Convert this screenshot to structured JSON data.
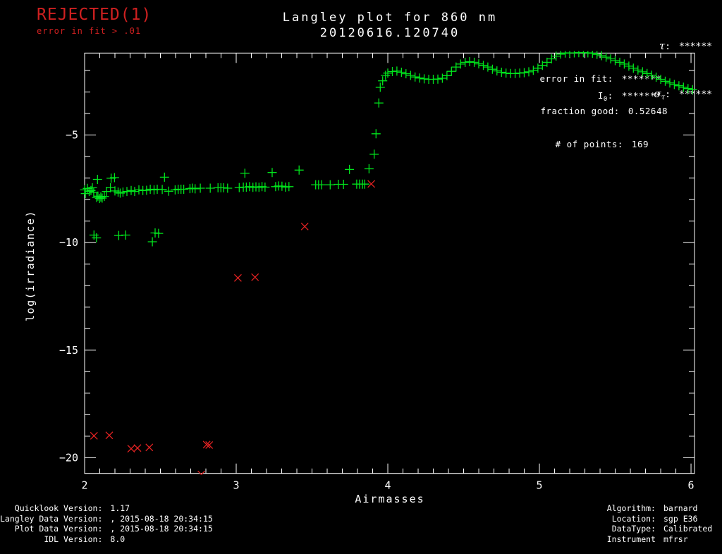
{
  "header": {
    "rejected": "REJECTED(1)",
    "rejected_reason": "error in fit > .01",
    "title_line1": "Langley plot for 860 nm",
    "title_line2": "20120616.120740",
    "tau": {
      "symbol": "τ",
      "colon": ":",
      "value": "******"
    },
    "sigma": {
      "symbol": "σ",
      "sub": "τ",
      "colon": ":",
      "value": "******"
    }
  },
  "annotations": {
    "error_in_fit": {
      "label": "error in fit:",
      "value": "*******"
    },
    "i0": {
      "label_main": "I",
      "label_sub": "0",
      "colon": ":",
      "value": "*******"
    },
    "fraction_good": {
      "label": "fraction good:",
      "value": "0.52648"
    },
    "num_points": {
      "label": "# of points:",
      "value": "169"
    }
  },
  "footer_left": {
    "rows": [
      {
        "label": "Quicklook Version:",
        "value": "1.17"
      },
      {
        "label": "Langley Data Version:",
        "value": ", 2015-08-18 20:34:15"
      },
      {
        "label": "Plot Data Version:",
        "value": ", 2015-08-18 20:34:15"
      },
      {
        "label": "IDL Version:",
        "value": "8.0"
      }
    ]
  },
  "footer_right": {
    "rows": [
      {
        "label": "Algorithm:",
        "value": "barnard"
      },
      {
        "label": "Location:",
        "value": "sgp E36"
      },
      {
        "label": "DataType:",
        "value": "Calibrated"
      },
      {
        "label": "Instrument",
        "value": "mfrsr"
      }
    ]
  },
  "colors": {
    "background": "#000000",
    "axis": "#ffffff",
    "accepted_green": "#00e51c",
    "rejected_red": "#e32222",
    "text_red": "#cf2020",
    "text_white": "#ffffff"
  },
  "chart_data": {
    "type": "scatter",
    "title": "Langley plot for 860 nm 20120616.120740",
    "xlabel": "Airmasses",
    "ylabel": "log(irradiance)",
    "xlim": [
      2.0,
      6.023
    ],
    "ylim": [
      -20.73,
      -1.19
    ],
    "x_major_ticks": [
      2,
      3,
      4,
      5,
      6
    ],
    "x_tick_labels": [
      "2",
      "3",
      "4",
      "5",
      "6"
    ],
    "x_minor_step": 0.1,
    "y_major_ticks": [
      -5,
      -10,
      -15,
      -20
    ],
    "y_tick_labels": [
      "−5",
      "−10",
      "−15",
      "−20"
    ],
    "y_minor_step": 1,
    "grid": false,
    "series": [
      {
        "name": "accepted",
        "marker": "plus",
        "color": "#00e51c",
        "points": [
          [
            2.0,
            -7.55
          ],
          [
            2.005,
            -7.72
          ],
          [
            2.018,
            -7.48
          ],
          [
            2.03,
            -7.62
          ],
          [
            2.042,
            -7.58
          ],
          [
            2.051,
            -7.45
          ],
          [
            2.06,
            -7.66
          ],
          [
            2.079,
            -7.9
          ],
          [
            2.088,
            -7.84
          ],
          [
            2.098,
            -7.95
          ],
          [
            2.107,
            -7.88
          ],
          [
            2.116,
            -7.93
          ],
          [
            2.13,
            -7.85
          ],
          [
            2.144,
            -7.62
          ],
          [
            2.17,
            -7.45
          ],
          [
            2.2,
            -7.6
          ],
          [
            2.221,
            -7.65
          ],
          [
            2.235,
            -7.7
          ],
          [
            2.253,
            -7.65
          ],
          [
            2.279,
            -7.62
          ],
          [
            2.307,
            -7.58
          ],
          [
            2.33,
            -7.62
          ],
          [
            2.358,
            -7.55
          ],
          [
            2.384,
            -7.58
          ],
          [
            2.409,
            -7.57
          ],
          [
            2.433,
            -7.52
          ],
          [
            2.458,
            -7.55
          ],
          [
            2.479,
            -7.52
          ],
          [
            2.512,
            -7.53
          ],
          [
            2.555,
            -7.61
          ],
          [
            2.597,
            -7.55
          ],
          [
            2.617,
            -7.52
          ],
          [
            2.636,
            -7.52
          ],
          [
            2.654,
            -7.52
          ],
          [
            2.695,
            -7.49
          ],
          [
            2.71,
            -7.47
          ],
          [
            2.729,
            -7.5
          ],
          [
            2.763,
            -7.47
          ],
          [
            2.829,
            -7.47
          ],
          [
            2.88,
            -7.45
          ],
          [
            2.899,
            -7.45
          ],
          [
            2.917,
            -7.45
          ],
          [
            2.943,
            -7.47
          ],
          [
            3.02,
            -7.44
          ],
          [
            3.047,
            -7.42
          ],
          [
            3.067,
            -7.42
          ],
          [
            3.088,
            -7.4
          ],
          [
            3.11,
            -7.43
          ],
          [
            3.13,
            -7.41
          ],
          [
            3.15,
            -7.43
          ],
          [
            3.17,
            -7.4
          ],
          [
            3.19,
            -7.42
          ],
          [
            3.26,
            -7.4
          ],
          [
            3.28,
            -7.37
          ],
          [
            3.302,
            -7.38
          ],
          [
            3.325,
            -7.42
          ],
          [
            3.348,
            -7.4
          ],
          [
            3.524,
            -7.31
          ],
          [
            3.543,
            -7.31
          ],
          [
            3.563,
            -7.31
          ],
          [
            3.62,
            -7.31
          ],
          [
            3.674,
            -7.29
          ],
          [
            3.708,
            -7.29
          ],
          [
            3.795,
            -7.28
          ],
          [
            3.814,
            -7.28
          ],
          [
            3.833,
            -7.28
          ],
          [
            3.848,
            -7.28
          ],
          [
            2.085,
            -7.06
          ],
          [
            2.175,
            -7.01
          ],
          [
            2.197,
            -6.98
          ],
          [
            2.527,
            -6.96
          ],
          [
            3.057,
            -6.78
          ],
          [
            3.237,
            -6.74
          ],
          [
            3.415,
            -6.63
          ],
          [
            3.747,
            -6.6
          ],
          [
            2.062,
            -9.65
          ],
          [
            2.078,
            -9.78
          ],
          [
            2.225,
            -9.67
          ],
          [
            2.271,
            -9.65
          ],
          [
            2.447,
            -9.96
          ],
          [
            2.465,
            -9.55
          ],
          [
            2.488,
            -9.57
          ],
          [
            3.876,
            -6.57
          ],
          [
            3.91,
            -5.89
          ],
          [
            3.922,
            -4.94
          ],
          [
            3.941,
            -3.51
          ],
          [
            3.95,
            -2.78
          ],
          [
            3.966,
            -2.48
          ],
          [
            3.985,
            -2.23
          ],
          [
            4.0,
            -2.12
          ],
          [
            4.03,
            -2.05
          ],
          [
            4.06,
            -2.03
          ],
          [
            4.09,
            -2.08
          ],
          [
            4.12,
            -2.15
          ],
          [
            4.15,
            -2.23
          ],
          [
            4.18,
            -2.3
          ],
          [
            4.21,
            -2.35
          ],
          [
            4.24,
            -2.39
          ],
          [
            4.27,
            -2.41
          ],
          [
            4.3,
            -2.41
          ],
          [
            4.33,
            -2.4
          ],
          [
            4.36,
            -2.36
          ],
          [
            4.39,
            -2.24
          ],
          [
            4.42,
            -2.04
          ],
          [
            4.45,
            -1.84
          ],
          [
            4.48,
            -1.7
          ],
          [
            4.51,
            -1.62
          ],
          [
            4.54,
            -1.59
          ],
          [
            4.57,
            -1.62
          ],
          [
            4.6,
            -1.69
          ],
          [
            4.63,
            -1.76
          ],
          [
            4.66,
            -1.84
          ],
          [
            4.69,
            -1.94
          ],
          [
            4.72,
            -2.02
          ],
          [
            4.75,
            -2.08
          ],
          [
            4.78,
            -2.12
          ],
          [
            4.81,
            -2.14
          ],
          [
            4.84,
            -2.14
          ],
          [
            4.87,
            -2.12
          ],
          [
            4.9,
            -2.1
          ],
          [
            4.93,
            -2.06
          ],
          [
            4.96,
            -1.99
          ],
          [
            4.99,
            -1.89
          ],
          [
            5.02,
            -1.76
          ],
          [
            5.05,
            -1.62
          ],
          [
            5.08,
            -1.46
          ],
          [
            5.11,
            -1.33
          ],
          [
            5.14,
            -1.24
          ],
          [
            5.17,
            -1.19
          ],
          [
            5.2,
            -1.18
          ],
          [
            5.23,
            -1.18
          ],
          [
            5.26,
            -1.17
          ],
          [
            5.29,
            -1.17
          ],
          [
            5.32,
            -1.18
          ],
          [
            5.35,
            -1.2
          ],
          [
            5.38,
            -1.25
          ],
          [
            5.41,
            -1.31
          ],
          [
            5.44,
            -1.38
          ],
          [
            5.47,
            -1.46
          ],
          [
            5.5,
            -1.54
          ],
          [
            5.53,
            -1.62
          ],
          [
            5.56,
            -1.7
          ],
          [
            5.59,
            -1.8
          ],
          [
            5.62,
            -1.89
          ],
          [
            5.65,
            -1.98
          ],
          [
            5.68,
            -2.06
          ],
          [
            5.71,
            -2.14
          ],
          [
            5.74,
            -2.22
          ],
          [
            5.77,
            -2.31
          ],
          [
            5.8,
            -2.41
          ],
          [
            5.83,
            -2.5
          ],
          [
            5.86,
            -2.58
          ],
          [
            5.89,
            -2.65
          ],
          [
            5.92,
            -2.71
          ],
          [
            5.95,
            -2.78
          ],
          [
            5.98,
            -2.84
          ],
          [
            6.01,
            -2.89
          ]
        ]
      },
      {
        "name": "rejected",
        "marker": "x",
        "color": "#e32222",
        "points": [
          [
            2.062,
            -18.98
          ],
          [
            2.163,
            -18.96
          ],
          [
            2.307,
            -19.58
          ],
          [
            2.349,
            -19.55
          ],
          [
            2.427,
            -19.52
          ],
          [
            2.805,
            -19.39
          ],
          [
            2.822,
            -19.41
          ],
          [
            2.77,
            -20.78
          ],
          [
            3.011,
            -11.64
          ],
          [
            3.124,
            -11.61
          ],
          [
            3.452,
            -9.25
          ],
          [
            3.891,
            -7.27
          ]
        ]
      }
    ]
  }
}
